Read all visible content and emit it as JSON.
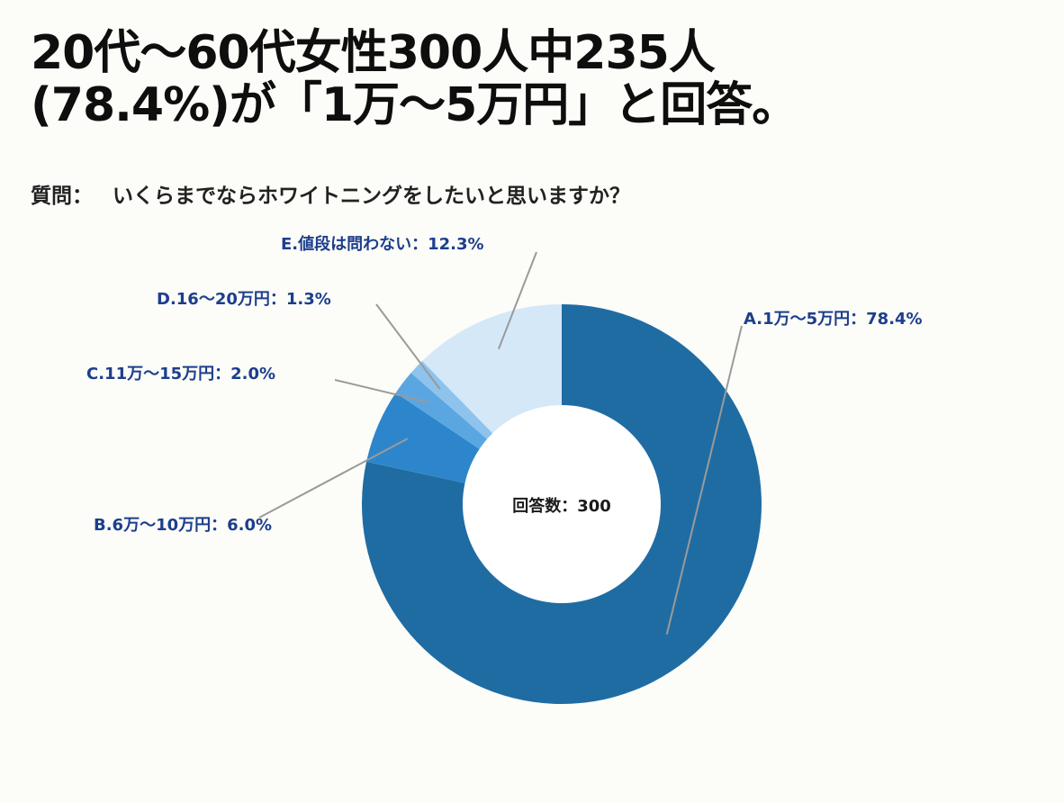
{
  "headline": {
    "line1": "20代〜60代女性300人中235人",
    "line2": "(78.4%)が「1万〜5万円」と回答。"
  },
  "question": {
    "label": "質問：",
    "text": "いくらまでならホワイトニングをしたいと思いますか？"
  },
  "chart_data": {
    "type": "pie",
    "donut": true,
    "center_label": "回答数：300",
    "slices": [
      {
        "label": "A.1万〜5万円：78.4%",
        "value": 78.4,
        "color": "#1f6ca3"
      },
      {
        "label": "B.6万〜10万円：6.0%",
        "value": 6.0,
        "color": "#2d86cb"
      },
      {
        "label": "C.11万〜15万円：2.0%",
        "value": 2.0,
        "color": "#5aa6e0"
      },
      {
        "label": "D.16〜20万円：1.3%",
        "value": 1.3,
        "color": "#8dc3ec"
      },
      {
        "label": "E.値段は問わない：12.3%",
        "value": 12.3,
        "color": "#d4e8f8"
      }
    ]
  }
}
